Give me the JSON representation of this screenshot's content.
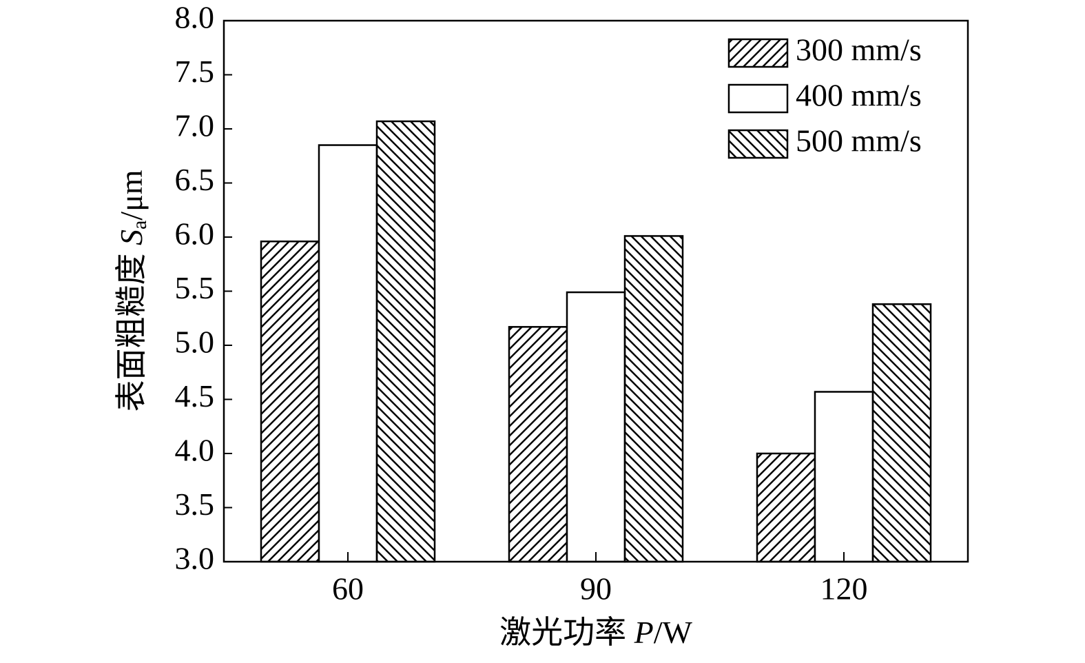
{
  "chart_data": {
    "type": "bar",
    "x_label": {
      "text": "激光功率 ",
      "var": "P",
      "unit": "/W"
    },
    "y_label": {
      "text": "表面粗糙度 ",
      "var": "S",
      "sub": "a",
      "unit": "/μm"
    },
    "categories": [
      "60",
      "90",
      "120"
    ],
    "series": [
      {
        "name": "300 mm/s",
        "color": "#000000",
        "pattern": "hatch-forward",
        "values": [
          5.96,
          5.17,
          4.0
        ]
      },
      {
        "name": "400 mm/s",
        "color": "#000000",
        "pattern": "none",
        "values": [
          6.85,
          5.49,
          4.57
        ]
      },
      {
        "name": "500 mm/s",
        "color": "#000000",
        "pattern": "hatch-back",
        "values": [
          7.07,
          6.01,
          5.38
        ]
      }
    ],
    "ylim": [
      3,
      8
    ],
    "yticks": [
      {
        "value": 3,
        "label": "3.0"
      },
      3.5,
      {
        "value": 4,
        "label": "4.0"
      },
      4.5,
      {
        "value": 5,
        "label": "5.0"
      },
      5.5,
      {
        "value": 6,
        "label": "6.0"
      },
      6.5,
      {
        "value": 7,
        "label": "7.0"
      },
      7.5,
      {
        "value": 8,
        "label": "8.0"
      }
    ],
    "legend": "upper right",
    "grid": false
  }
}
